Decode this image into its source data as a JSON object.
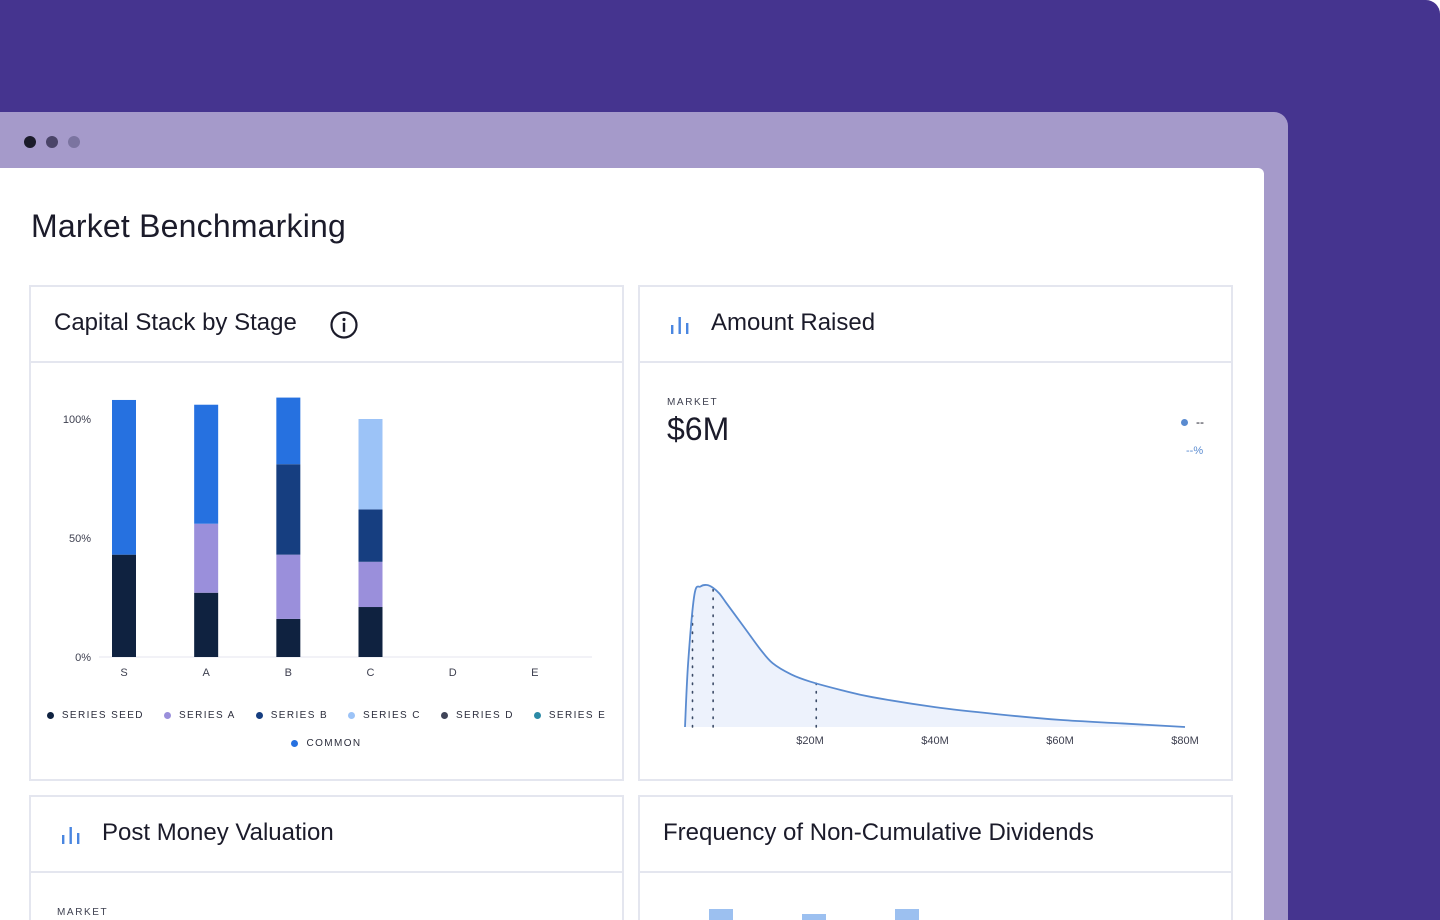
{
  "page": {
    "title": "Market Benchmarking"
  },
  "colors": {
    "background_purple": "#45348f",
    "frame_lavender": "#a59aca",
    "accent_blue": "#5a8bd0"
  },
  "capital_stack": {
    "title": "Capital Stack by Stage",
    "info_icon": "info-icon",
    "chart_data": {
      "type": "bar",
      "stacked": true,
      "title": "Capital Stack by Stage",
      "categories": [
        "S",
        "A",
        "B",
        "C",
        "D",
        "E"
      ],
      "y_ticks": [
        "100%",
        "50%",
        "0%"
      ],
      "ylim": [
        0,
        100
      ],
      "series": [
        {
          "name": "SERIES SEED",
          "color": "#0f2240",
          "values": [
            43,
            27,
            16,
            21,
            0,
            0
          ]
        },
        {
          "name": "SERIES A",
          "color": "#9a8fdb",
          "values": [
            0,
            29,
            27,
            19,
            0,
            0
          ]
        },
        {
          "name": "SERIES B",
          "color": "#163e80",
          "values": [
            0,
            0,
            38,
            22,
            0,
            0
          ]
        },
        {
          "name": "SERIES C",
          "color": "#9cc3f7",
          "values": [
            0,
            0,
            0,
            38,
            0,
            0
          ]
        },
        {
          "name": "SERIES D",
          "color": "#404458",
          "values": [
            0,
            0,
            0,
            0,
            0,
            0
          ]
        },
        {
          "name": "SERIES E",
          "color": "#2b8aa6",
          "values": [
            0,
            0,
            0,
            0,
            0,
            0
          ]
        },
        {
          "name": "COMMON",
          "color": "#2671e0",
          "values": [
            65,
            50,
            28,
            0,
            0,
            0
          ]
        }
      ]
    }
  },
  "amount_raised": {
    "title": "Amount Raised",
    "icon": "bar-chart-icon",
    "market_label": "MARKET",
    "market_value": "$6M",
    "legend_value": "--",
    "legend_pct": "--%",
    "chart_data": {
      "type": "area",
      "title": "Amount Raised",
      "x_ticks": [
        "$20M",
        "$40M",
        "$60M",
        "$80M"
      ],
      "xlim": [
        0,
        80
      ],
      "x": [
        0,
        0.5,
        1.5,
        2.5,
        3.5,
        4.5,
        5.5,
        6.5,
        8,
        10,
        12,
        14,
        17,
        20,
        25,
        30,
        40,
        50,
        60,
        70,
        80
      ],
      "y": [
        0,
        0.45,
        0.93,
        0.99,
        1.0,
        0.98,
        0.94,
        0.88,
        0.79,
        0.67,
        0.55,
        0.45,
        0.37,
        0.32,
        0.26,
        0.21,
        0.14,
        0.09,
        0.05,
        0.025,
        0.0
      ],
      "reference_lines_x": [
        1.2,
        4.5,
        21
      ],
      "series": [
        {
          "name": "Market",
          "color": "#5a8bd0"
        }
      ]
    }
  },
  "post_money": {
    "title": "Post Money Valuation",
    "icon": "bar-chart-icon",
    "market_label": "MARKET"
  },
  "frequency": {
    "title": "Frequency of Non-Cumulative Dividends"
  }
}
